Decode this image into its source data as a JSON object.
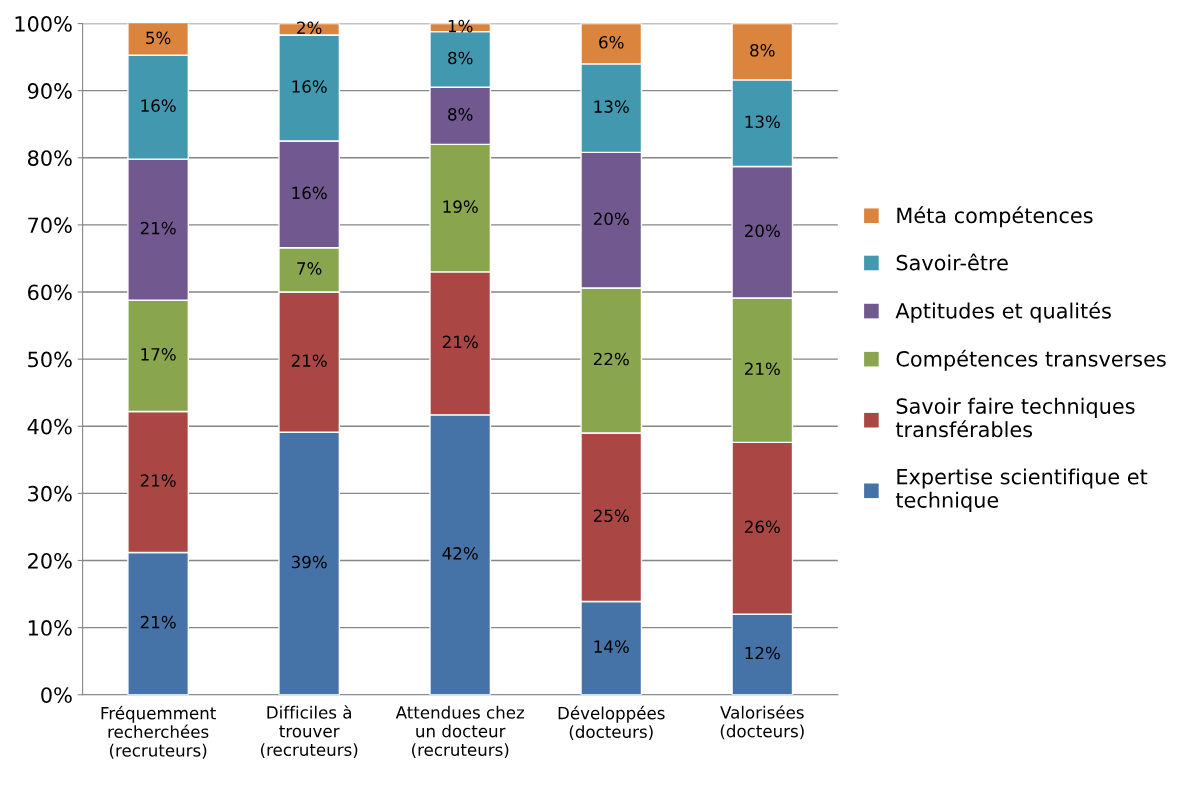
{
  "chart_data": {
    "type": "bar",
    "stacked": true,
    "categories": [
      "Fréquemment\nrecherchées\n(recruteurs)",
      "Difficiles à\ntrouver\n(recruteurs)",
      "Attendues chez\nun docteur\n(recruteurs)",
      "Développées\n(docteurs)",
      "Valorisées\n(docteurs)"
    ],
    "series": [
      {
        "name": "Expertise scientifique et\ntechnique",
        "color": "#4572a7",
        "values": [
          21.2,
          39.1,
          41.7,
          13.9,
          12.0
        ],
        "value_labels": [
          "21%",
          "39%",
          "42%",
          "14%",
          "12%"
        ]
      },
      {
        "name": "Savoir faire techniques\ntransférables",
        "color": "#aa4643",
        "values": [
          21.0,
          20.9,
          21.3,
          25.1,
          25.6
        ],
        "value_labels": [
          "21%",
          "21%",
          "21%",
          "25%",
          "26%"
        ]
      },
      {
        "name": "Compétences transverses",
        "color": "#89a54e",
        "values": [
          16.6,
          6.6,
          19.0,
          21.6,
          21.5
        ],
        "value_labels": [
          "17%",
          "7%",
          "19%",
          "22%",
          "21%"
        ]
      },
      {
        "name": "Aptitudes et qualités",
        "color": "#71588f",
        "values": [
          21.0,
          15.9,
          8.5,
          20.2,
          19.6
        ],
        "value_labels": [
          "21%",
          "16%",
          "8%",
          "20%",
          "20%"
        ]
      },
      {
        "name": "Savoir-être",
        "color": "#4198af",
        "values": [
          15.5,
          15.8,
          8.3,
          13.2,
          12.9
        ],
        "value_labels": [
          "16%",
          "16%",
          "8%",
          "13%",
          "13%"
        ]
      },
      {
        "name": "Méta compétences",
        "color": "#db843d",
        "values": [
          4.9,
          1.7,
          1.2,
          6.0,
          8.4
        ],
        "value_labels": [
          "5%",
          "2%",
          "1%",
          "6%",
          "8%"
        ]
      }
    ],
    "ylim": [
      0,
      100
    ],
    "yticks": [
      {
        "value": 0,
        "label": "0%"
      },
      {
        "value": 10,
        "label": "10%"
      },
      {
        "value": 20,
        "label": "20%"
      },
      {
        "value": 30,
        "label": "30%"
      },
      {
        "value": 40,
        "label": "40%"
      },
      {
        "value": 50,
        "label": "50%"
      },
      {
        "value": 60,
        "label": "60%"
      },
      {
        "value": 70,
        "label": "70%"
      },
      {
        "value": 80,
        "label": "80%"
      },
      {
        "value": 90,
        "label": "90%"
      },
      {
        "value": 100,
        "label": "100%"
      }
    ],
    "grid": "y",
    "legend": "right"
  }
}
